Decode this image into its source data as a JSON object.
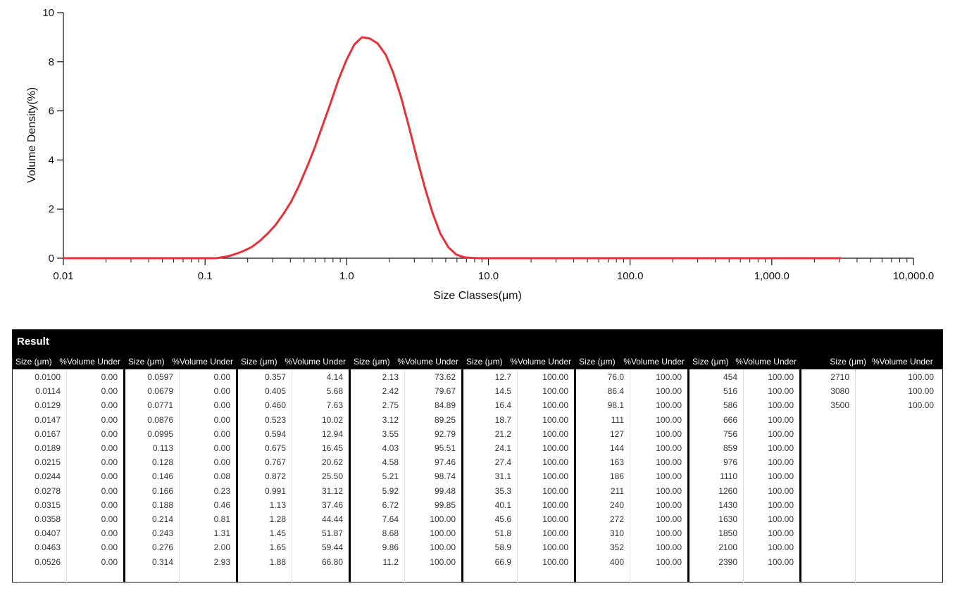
{
  "chart_data": {
    "type": "line",
    "xlabel": "Size Classes(μm)",
    "ylabel": "Volume Density(%)",
    "x_scale": "log",
    "xlim": [
      0.01,
      10000
    ],
    "ylim": [
      0,
      10
    ],
    "x_ticks": [
      {
        "value": 0.01,
        "label": "0.01"
      },
      {
        "value": 0.1,
        "label": "0.1"
      },
      {
        "value": 1,
        "label": "1.0"
      },
      {
        "value": 10,
        "label": "10.0"
      },
      {
        "value": 100,
        "label": "100.0"
      },
      {
        "value": 1000,
        "label": "1,000.0"
      },
      {
        "value": 10000,
        "label": "10,000.0"
      }
    ],
    "y_ticks": [
      {
        "value": 0,
        "label": "0"
      },
      {
        "value": 2,
        "label": "2"
      },
      {
        "value": 4,
        "label": "4"
      },
      {
        "value": 6,
        "label": "6"
      },
      {
        "value": 8,
        "label": "8"
      },
      {
        "value": 10,
        "label": "10"
      }
    ],
    "series": [
      {
        "color": "#e8303a",
        "x": [
          0.01,
          0.1,
          0.12,
          0.146,
          0.166,
          0.188,
          0.214,
          0.243,
          0.276,
          0.314,
          0.357,
          0.405,
          0.46,
          0.523,
          0.594,
          0.675,
          0.767,
          0.872,
          0.991,
          1.13,
          1.28,
          1.45,
          1.65,
          1.88,
          2.13,
          2.42,
          2.75,
          3.12,
          3.55,
          4.03,
          4.58,
          5.21,
          5.92,
          6.72,
          7.64,
          8.68,
          9.86,
          100,
          1000,
          3080
        ],
        "y": [
          0,
          0,
          0,
          0.08,
          0.18,
          0.3,
          0.46,
          0.7,
          1.0,
          1.35,
          1.8,
          2.3,
          2.95,
          3.7,
          4.5,
          5.4,
          6.3,
          7.25,
          8.05,
          8.7,
          9.0,
          8.95,
          8.75,
          8.3,
          7.55,
          6.55,
          5.35,
          4.1,
          2.9,
          1.85,
          1.0,
          0.45,
          0.15,
          0.04,
          0.01,
          0,
          0,
          0,
          0,
          0
        ]
      }
    ]
  },
  "result": {
    "title": "Result",
    "col_size": "Size (μm)",
    "col_vol": "%Volume Under",
    "groups": [
      [
        [
          "0.0100",
          "0.00"
        ],
        [
          "0.0114",
          "0.00"
        ],
        [
          "0.0129",
          "0.00"
        ],
        [
          "0.0147",
          "0.00"
        ],
        [
          "0.0167",
          "0.00"
        ],
        [
          "0.0189",
          "0.00"
        ],
        [
          "0.0215",
          "0.00"
        ],
        [
          "0.0244",
          "0.00"
        ],
        [
          "0.0278",
          "0.00"
        ],
        [
          "0.0315",
          "0.00"
        ],
        [
          "0.0358",
          "0.00"
        ],
        [
          "0.0407",
          "0.00"
        ],
        [
          "0.0463",
          "0.00"
        ],
        [
          "0.0526",
          "0.00"
        ]
      ],
      [
        [
          "0.0597",
          "0.00"
        ],
        [
          "0.0679",
          "0.00"
        ],
        [
          "0.0771",
          "0.00"
        ],
        [
          "0.0876",
          "0.00"
        ],
        [
          "0.0995",
          "0.00"
        ],
        [
          "0.113",
          "0.00"
        ],
        [
          "0.128",
          "0.00"
        ],
        [
          "0.146",
          "0.08"
        ],
        [
          "0.166",
          "0.23"
        ],
        [
          "0.188",
          "0.46"
        ],
        [
          "0.214",
          "0.81"
        ],
        [
          "0.243",
          "1.31"
        ],
        [
          "0.276",
          "2.00"
        ],
        [
          "0.314",
          "2.93"
        ]
      ],
      [
        [
          "0.357",
          "4.14"
        ],
        [
          "0.405",
          "5.68"
        ],
        [
          "0.460",
          "7.63"
        ],
        [
          "0.523",
          "10.02"
        ],
        [
          "0.594",
          "12.94"
        ],
        [
          "0.675",
          "16.45"
        ],
        [
          "0.767",
          "20.62"
        ],
        [
          "0.872",
          "25.50"
        ],
        [
          "0.991",
          "31.12"
        ],
        [
          "1.13",
          "37.46"
        ],
        [
          "1.28",
          "44.44"
        ],
        [
          "1.45",
          "51.87"
        ],
        [
          "1.65",
          "59.44"
        ],
        [
          "1.88",
          "66.80"
        ]
      ],
      [
        [
          "2.13",
          "73.62"
        ],
        [
          "2.42",
          "79.67"
        ],
        [
          "2.75",
          "84.89"
        ],
        [
          "3.12",
          "89.25"
        ],
        [
          "3.55",
          "92.79"
        ],
        [
          "4.03",
          "95.51"
        ],
        [
          "4.58",
          "97.46"
        ],
        [
          "5.21",
          "98.74"
        ],
        [
          "5.92",
          "99.48"
        ],
        [
          "6.72",
          "99.85"
        ],
        [
          "7.64",
          "100.00"
        ],
        [
          "8.68",
          "100.00"
        ],
        [
          "9.86",
          "100.00"
        ],
        [
          "11.2",
          "100.00"
        ]
      ],
      [
        [
          "12.7",
          "100.00"
        ],
        [
          "14.5",
          "100.00"
        ],
        [
          "16.4",
          "100.00"
        ],
        [
          "18.7",
          "100.00"
        ],
        [
          "21.2",
          "100.00"
        ],
        [
          "24.1",
          "100.00"
        ],
        [
          "27.4",
          "100.00"
        ],
        [
          "31.1",
          "100.00"
        ],
        [
          "35.3",
          "100.00"
        ],
        [
          "40.1",
          "100.00"
        ],
        [
          "45.6",
          "100.00"
        ],
        [
          "51.8",
          "100.00"
        ],
        [
          "58.9",
          "100.00"
        ],
        [
          "66.9",
          "100.00"
        ]
      ],
      [
        [
          "76.0",
          "100.00"
        ],
        [
          "86.4",
          "100.00"
        ],
        [
          "98.1",
          "100.00"
        ],
        [
          "111",
          "100.00"
        ],
        [
          "127",
          "100.00"
        ],
        [
          "144",
          "100.00"
        ],
        [
          "163",
          "100.00"
        ],
        [
          "186",
          "100.00"
        ],
        [
          "211",
          "100.00"
        ],
        [
          "240",
          "100.00"
        ],
        [
          "272",
          "100.00"
        ],
        [
          "310",
          "100.00"
        ],
        [
          "352",
          "100.00"
        ],
        [
          "400",
          "100.00"
        ]
      ],
      [
        [
          "454",
          "100.00"
        ],
        [
          "516",
          "100.00"
        ],
        [
          "586",
          "100.00"
        ],
        [
          "666",
          "100.00"
        ],
        [
          "756",
          "100.00"
        ],
        [
          "859",
          "100.00"
        ],
        [
          "976",
          "100.00"
        ],
        [
          "1110",
          "100.00"
        ],
        [
          "1260",
          "100.00"
        ],
        [
          "1430",
          "100.00"
        ],
        [
          "1630",
          "100.00"
        ],
        [
          "1850",
          "100.00"
        ],
        [
          "2100",
          "100.00"
        ],
        [
          "2390",
          "100.00"
        ]
      ],
      [
        [
          "2710",
          "100.00"
        ],
        [
          "3080",
          "100.00"
        ],
        [
          "3500",
          "100.00"
        ]
      ]
    ]
  }
}
